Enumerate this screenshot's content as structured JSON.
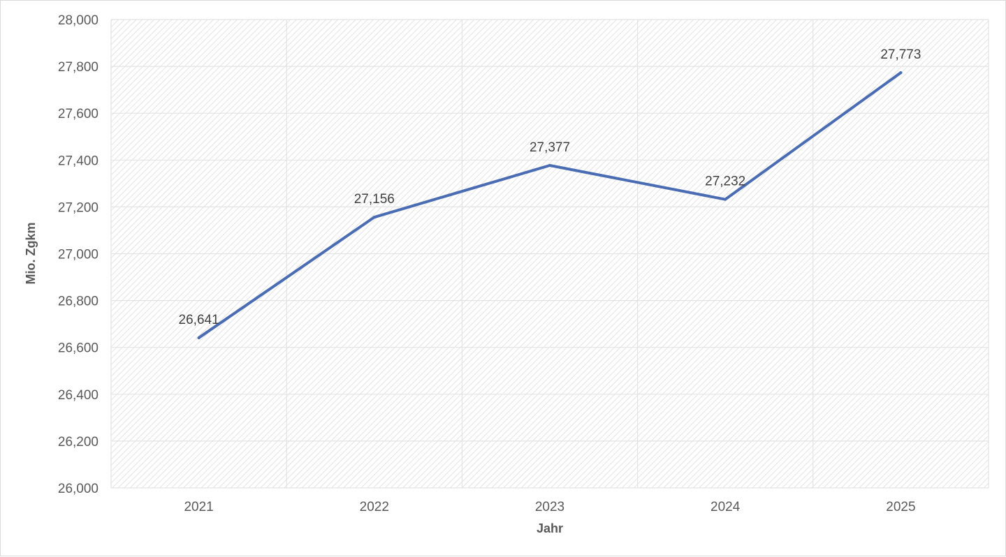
{
  "chart_data": {
    "type": "line",
    "title": "",
    "xlabel": "Jahr",
    "ylabel": "Mio. Zgkm",
    "categories": [
      "2021",
      "2022",
      "2023",
      "2024",
      "2025"
    ],
    "series": [
      {
        "values": [
          26641,
          27156,
          27377,
          27232,
          27773
        ]
      }
    ],
    "data_labels": [
      "26,641",
      "27,156",
      "27,377",
      "27,232",
      "27,773"
    ],
    "ylim": [
      26000,
      28000
    ],
    "yticks": [
      26000,
      26200,
      26400,
      26600,
      26800,
      27000,
      27200,
      27400,
      27600,
      27800,
      28000
    ],
    "ytick_labels": [
      "26,000",
      "26,200",
      "26,400",
      "26,600",
      "26,800",
      "27,000",
      "27,200",
      "27,400",
      "27,600",
      "27,800",
      "28,000"
    ],
    "grid": true,
    "legend": "none",
    "colors": {
      "line": "#4a6cb3",
      "grid": "#e3e3e3",
      "hatch": "#dcdcdc",
      "text": "#595959"
    }
  }
}
